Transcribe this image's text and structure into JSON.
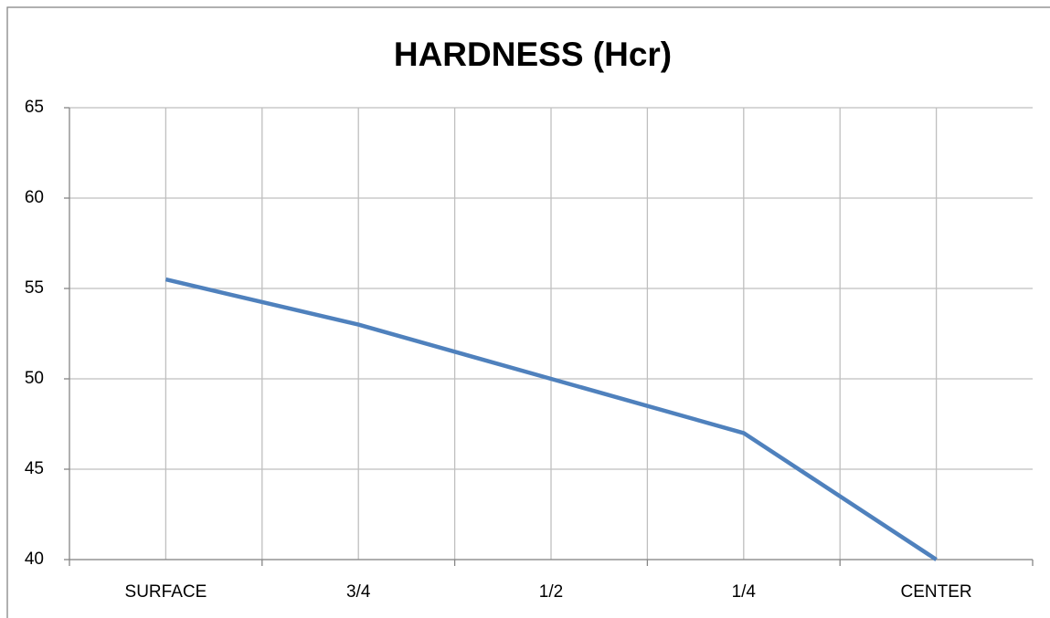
{
  "chart_data": {
    "type": "line",
    "title": "HARDNESS (Hcr)",
    "categories": [
      "SURFACE",
      "3/4",
      "1/2",
      "1/4",
      "CENTER"
    ],
    "series": [
      {
        "name": "Hardness",
        "color": "#4f81bd",
        "values": [
          55.5,
          53,
          50,
          47,
          40
        ]
      }
    ],
    "ylim": [
      40,
      65
    ],
    "yticks": [
      40,
      45,
      50,
      55,
      60,
      65
    ],
    "grid": true
  }
}
